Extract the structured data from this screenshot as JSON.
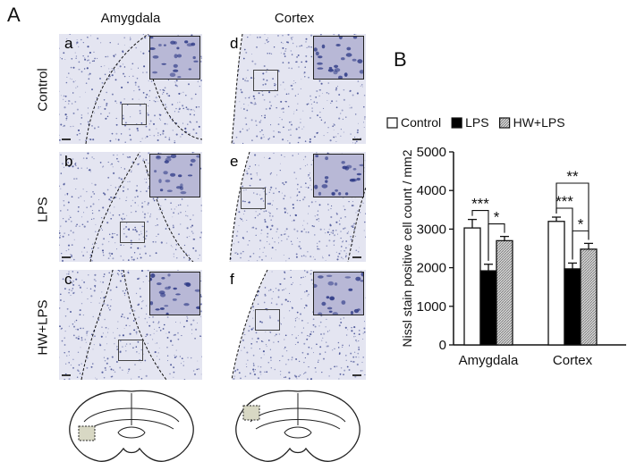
{
  "panel_a_label": "A",
  "panel_b_label": "B",
  "columns": [
    "Amygdala",
    "Cortex"
  ],
  "rows": [
    "Control",
    "LPS",
    "HW+LPS"
  ],
  "subpanels": [
    "a",
    "b",
    "c",
    "d",
    "e",
    "f"
  ],
  "colors": {
    "tissue": "#e4e5f1",
    "stain": "#2e3a86",
    "inset_bg": "#b8b8d6",
    "control": "#ffffff",
    "lps": "#000000",
    "hw_lps_hatch": "#9a9a9a"
  },
  "chart_data": {
    "type": "bar",
    "title": "",
    "xlabel": "",
    "ylabel": "Nissl stain positive cell count / mm2",
    "ylim": [
      0,
      5000
    ],
    "yticks": [
      0,
      1000,
      2000,
      3000,
      4000,
      5000
    ],
    "grid": false,
    "legend_position": "top",
    "categories": [
      "Amygdala",
      "Cortex"
    ],
    "series": [
      {
        "name": "Control",
        "values": [
          3030,
          3200
        ],
        "errors": [
          220,
          110
        ],
        "fill": "white"
      },
      {
        "name": "LPS",
        "values": [
          1920,
          1970
        ],
        "errors": [
          170,
          150
        ],
        "fill": "black"
      },
      {
        "name": "HW+LPS",
        "values": [
          2700,
          2480
        ],
        "errors": [
          110,
          150
        ],
        "fill": "hatched"
      }
    ],
    "significance": [
      {
        "group": "Amygdala",
        "pair": [
          "Control",
          "LPS"
        ],
        "label": "***"
      },
      {
        "group": "Amygdala",
        "pair": [
          "LPS",
          "HW+LPS"
        ],
        "label": "*"
      },
      {
        "group": "Cortex",
        "pair": [
          "Control",
          "LPS"
        ],
        "label": "***"
      },
      {
        "group": "Cortex",
        "pair": [
          "LPS",
          "HW+LPS"
        ],
        "label": "*"
      },
      {
        "group": "Cortex",
        "pair": [
          "Control",
          "HW+LPS"
        ],
        "label": "**"
      }
    ]
  }
}
